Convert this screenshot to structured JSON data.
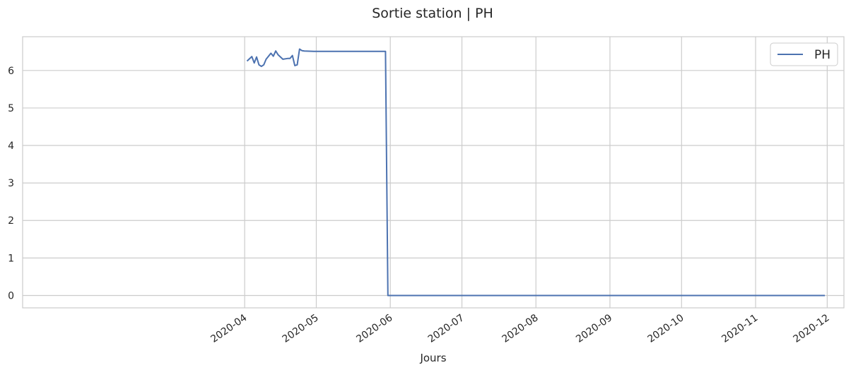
{
  "chart_data": {
    "type": "line",
    "title": "Sortie station | PH",
    "xlabel": "Jours",
    "ylabel": "",
    "ylim": [
      -0.33,
      6.9
    ],
    "xlim": [
      "2019-12-30",
      "2020-12-08"
    ],
    "grid": true,
    "legend_position": "top-right",
    "x_ticks": [
      {
        "date": "2020-04-01",
        "label": "2020-04"
      },
      {
        "date": "2020-05-01",
        "label": "2020-05"
      },
      {
        "date": "2020-06-01",
        "label": "2020-06"
      },
      {
        "date": "2020-07-01",
        "label": "2020-07"
      },
      {
        "date": "2020-08-01",
        "label": "2020-08"
      },
      {
        "date": "2020-09-01",
        "label": "2020-09"
      },
      {
        "date": "2020-10-01",
        "label": "2020-10"
      },
      {
        "date": "2020-11-01",
        "label": "2020-11"
      },
      {
        "date": "2020-12-01",
        "label": "2020-12"
      }
    ],
    "y_ticks": [
      {
        "value": 0,
        "label": "0"
      },
      {
        "value": 1,
        "label": "1"
      },
      {
        "value": 2,
        "label": "2"
      },
      {
        "value": 3,
        "label": "3"
      },
      {
        "value": 4,
        "label": "4"
      },
      {
        "value": 5,
        "label": "5"
      },
      {
        "value": 6,
        "label": "6"
      }
    ],
    "series": [
      {
        "name": "PH",
        "color": "#4c72b0",
        "x": [
          "2020-04-02",
          "2020-04-04",
          "2020-04-05",
          "2020-04-06",
          "2020-04-07",
          "2020-04-08",
          "2020-04-09",
          "2020-04-10",
          "2020-04-12",
          "2020-04-13",
          "2020-04-14",
          "2020-04-15",
          "2020-04-17",
          "2020-04-19",
          "2020-04-20",
          "2020-04-21",
          "2020-04-22",
          "2020-04-23",
          "2020-04-24",
          "2020-04-25",
          "2020-04-26",
          "2020-04-30",
          "2020-05-15",
          "2020-05-30",
          "2020-05-31",
          "2020-06-15",
          "2020-07-01",
          "2020-08-01",
          "2020-09-01",
          "2020-10-01",
          "2020-11-01",
          "2020-11-30"
        ],
        "y": [
          6.25,
          6.37,
          6.2,
          6.36,
          6.15,
          6.11,
          6.15,
          6.3,
          6.46,
          6.38,
          6.52,
          6.42,
          6.3,
          6.32,
          6.32,
          6.4,
          6.13,
          6.15,
          6.57,
          6.53,
          6.52,
          6.51,
          6.51,
          6.51,
          0.0,
          0.0,
          0.0,
          0.0,
          0.0,
          0.0,
          0.0,
          0.0
        ]
      }
    ]
  }
}
